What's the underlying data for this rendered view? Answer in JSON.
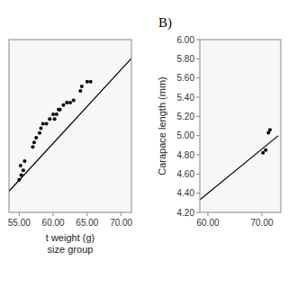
{
  "chart_data": [
    {
      "type": "scatter",
      "xlabel": [
        "t weight (g)",
        "size group"
      ],
      "xlim": [
        53.5,
        71.5
      ],
      "ylim": [
        3.5,
        7.2
      ],
      "xticks": [
        {
          "value": 55.0,
          "label": "55.00"
        },
        {
          "value": 60.0,
          "label": "60.00"
        },
        {
          "value": 65.0,
          "label": "65.00"
        },
        {
          "value": 70.0,
          "label": "70.00"
        }
      ],
      "tick_labels": "x",
      "grid": false,
      "series": [
        {
          "type": "scatter",
          "marker": "circle",
          "color": "#000000",
          "x": [
            55.0,
            55.2,
            55.3,
            55.6,
            55.8,
            57.0,
            57.2,
            57.5,
            58.0,
            58.2,
            58.5,
            59.0,
            59.5,
            60.0,
            60.2,
            60.5,
            60.8,
            61.0,
            61.5,
            62.0,
            62.5,
            63.0,
            64.0,
            64.2,
            65.0,
            65.5
          ],
          "values": [
            4.2,
            4.5,
            4.3,
            4.4,
            4.6,
            4.9,
            5.0,
            5.1,
            5.2,
            5.3,
            5.4,
            5.4,
            5.5,
            5.6,
            5.5,
            5.6,
            5.7,
            5.7,
            5.8,
            5.85,
            5.85,
            5.9,
            6.1,
            6.2,
            6.3,
            6.3
          ]
        },
        {
          "type": "line",
          "line_style": "solid",
          "color": "#000000",
          "x": [
            53.5,
            71.5
          ],
          "values": [
            3.953,
            6.797
          ]
        }
      ]
    },
    {
      "type": "scatter",
      "ylabel": "Carapace length (mm)",
      "annotations": [
        "B)"
      ],
      "xlim": [
        58.5,
        73.5
      ],
      "ylim": [
        4.2,
        6.0
      ],
      "xticks": [
        {
          "value": 60.0,
          "label": "60.00"
        },
        {
          "value": 70.0,
          "label": "70.00"
        }
      ],
      "yticks": [
        {
          "value": 4.2,
          "label": "4.20"
        },
        {
          "value": 4.4,
          "label": "4.40"
        },
        {
          "value": 4.6,
          "label": "4.60"
        },
        {
          "value": 4.8,
          "label": "4.80"
        },
        {
          "value": 5.0,
          "label": "5.00"
        },
        {
          "value": 5.2,
          "label": "5.20"
        },
        {
          "value": 5.4,
          "label": "5.40"
        },
        {
          "value": 5.6,
          "label": "5.60"
        },
        {
          "value": 5.8,
          "label": "5.80"
        },
        {
          "value": 6.0,
          "label": "6.00"
        }
      ],
      "grid": false,
      "series": [
        {
          "type": "scatter",
          "marker": "circle",
          "color": "#000000",
          "x": [
            70.2,
            70.7,
            71.2,
            71.5
          ],
          "values": [
            4.82,
            4.85,
            5.03,
            5.06
          ]
        },
        {
          "type": "line",
          "line_style": "solid",
          "color": "#000000",
          "x": [
            58.5,
            73.0
          ],
          "values": [
            4.331,
            4.998
          ]
        }
      ]
    }
  ]
}
